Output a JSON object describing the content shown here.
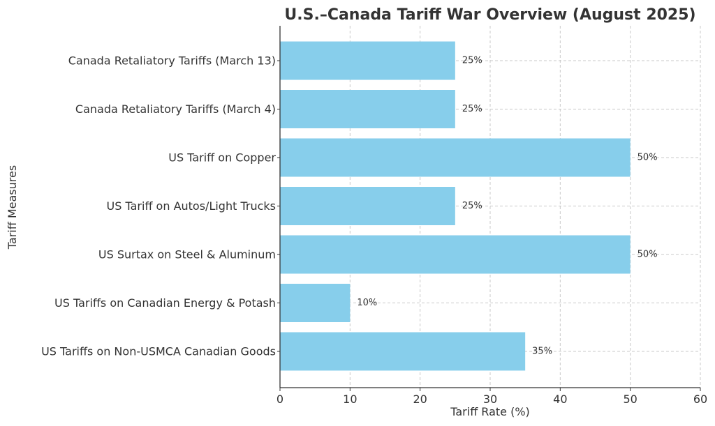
{
  "chart_data": {
    "type": "bar",
    "orientation": "horizontal",
    "title": "U.S.–Canada Tariff War Overview (August 2025)",
    "xlabel": "Tariff Rate (%)",
    "ylabel": "Tariff Measures",
    "xlim": [
      0,
      60
    ],
    "xticks": [
      0,
      10,
      20,
      30,
      40,
      50,
      60
    ],
    "grid": true,
    "bar_color": "#87CEEB",
    "categories": [
      "Canada Retaliatory Tariffs (March 13)",
      "Canada Retaliatory Tariffs (March 4)",
      "US Tariff on Copper",
      "US Tariff on Autos/Light Trucks",
      "US Surtax on Steel & Aluminum",
      "US Tariffs on Canadian Energy & Potash",
      "US Tariffs on Non-USMCA Canadian Goods"
    ],
    "values": [
      25,
      25,
      50,
      25,
      50,
      10,
      35
    ],
    "value_labels": [
      "25%",
      "25%",
      "50%",
      "25%",
      "50%",
      "10%",
      "35%"
    ]
  }
}
